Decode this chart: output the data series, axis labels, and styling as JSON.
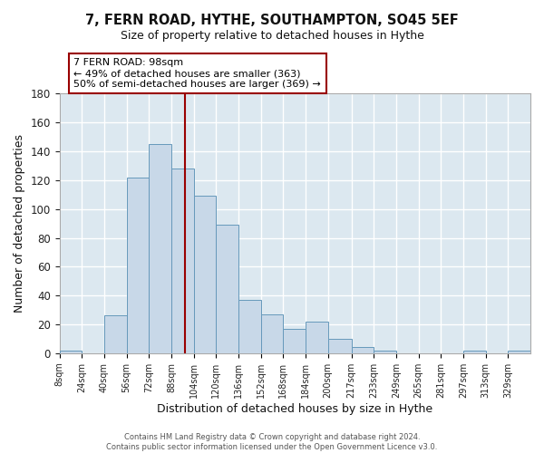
{
  "title_line1": "7, FERN ROAD, HYTHE, SOUTHAMPTON, SO45 5EF",
  "title_line2": "Size of property relative to detached houses in Hythe",
  "xlabel": "Distribution of detached houses by size in Hythe",
  "ylabel": "Number of detached properties",
  "bar_color": "#c8d8e8",
  "bar_edge_color": "#6699bb",
  "plot_bg_color": "#dce8f0",
  "fig_bg_color": "#ffffff",
  "grid_color": "#ffffff",
  "vline_x": 98,
  "vline_color": "#990000",
  "annotation_title": "7 FERN ROAD: 98sqm",
  "annotation_line1": "← 49% of detached houses are smaller (363)",
  "annotation_line2": "50% of semi-detached houses are larger (369) →",
  "annotation_box_color": "#990000",
  "bins": [
    8,
    24,
    40,
    56,
    72,
    88,
    104,
    120,
    136,
    152,
    168,
    184,
    200,
    217,
    233,
    249,
    265,
    281,
    297,
    313,
    329,
    345
  ],
  "counts": [
    2,
    0,
    26,
    122,
    145,
    128,
    109,
    89,
    37,
    27,
    17,
    22,
    10,
    4,
    2,
    0,
    0,
    0,
    2,
    0,
    2
  ],
  "xlim_left": 8,
  "xlim_right": 345,
  "ylim_top": 180,
  "yticks": [
    0,
    20,
    40,
    60,
    80,
    100,
    120,
    140,
    160,
    180
  ],
  "footer_line1": "Contains HM Land Registry data © Crown copyright and database right 2024.",
  "footer_line2": "Contains public sector information licensed under the Open Government Licence v3.0."
}
